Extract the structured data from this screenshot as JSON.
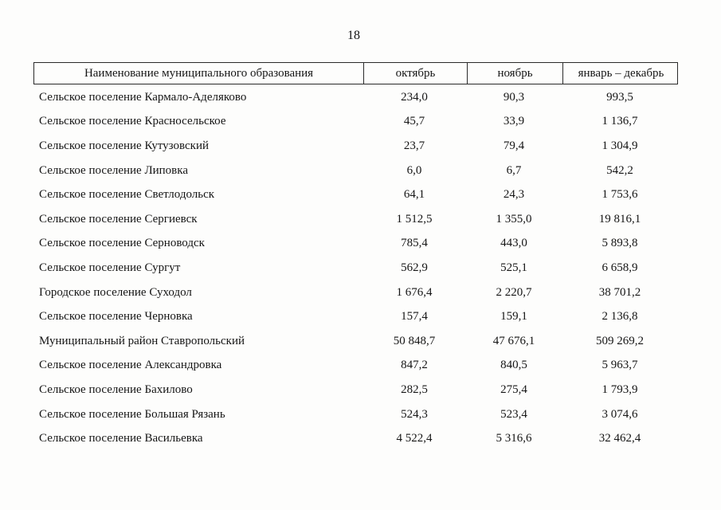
{
  "page": {
    "number": "18"
  },
  "table": {
    "headers": [
      "Наименование муниципального образования",
      "октябрь",
      "ноябрь",
      "январь – декабрь"
    ],
    "rows": [
      [
        "Сельское поселение Кармало-Аделяково",
        "234,0",
        "90,3",
        "993,5"
      ],
      [
        "Сельское поселение Красносельское",
        "45,7",
        "33,9",
        "1 136,7"
      ],
      [
        "Сельское поселение Кутузовский",
        "23,7",
        "79,4",
        "1 304,9"
      ],
      [
        "Сельское поселение Липовка",
        "6,0",
        "6,7",
        "542,2"
      ],
      [
        "Сельское поселение Светлодольск",
        "64,1",
        "24,3",
        "1 753,6"
      ],
      [
        "Сельское поселение Сергиевск",
        "1 512,5",
        "1 355,0",
        "19 816,1"
      ],
      [
        "Сельское поселение Серноводск",
        "785,4",
        "443,0",
        "5 893,8"
      ],
      [
        "Сельское поселение Сургут",
        "562,9",
        "525,1",
        "6 658,9"
      ],
      [
        "Городское поселение Суходол",
        "1 676,4",
        "2 220,7",
        "38 701,2"
      ],
      [
        "Сельское поселение Черновка",
        "157,4",
        "159,1",
        "2 136,8"
      ],
      [
        "Муниципальный район Ставропольский",
        "50 848,7",
        "47 676,1",
        "509 269,2"
      ],
      [
        "Сельское поселение Александровка",
        "847,2",
        "840,5",
        "5 963,7"
      ],
      [
        "Сельское поселение Бахилово",
        "282,5",
        "275,4",
        "1 793,9"
      ],
      [
        "Сельское поселение Большая Рязань",
        "524,3",
        "523,4",
        "3 074,6"
      ],
      [
        "Сельское поселение Васильевка",
        "4 522,4",
        "5 316,6",
        "32 462,4"
      ]
    ]
  }
}
